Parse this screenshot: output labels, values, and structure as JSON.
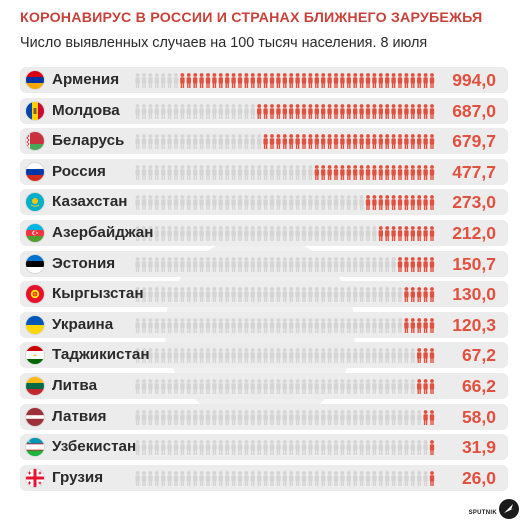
{
  "title": "КОРОНАВИРУС В РОССИИ И СТРАНАХ БЛИЖНЕГО ЗАРУБЕЖЬЯ",
  "subtitle": "Число выявленных случаев на 100 тысяч населения. 8 июля",
  "colors": {
    "accent": "#e2513f",
    "muted": "#d5d5d5",
    "row_bg": "#ececec",
    "title": "#c9423a"
  },
  "logo": {
    "text": "SPUTNIK",
    "icon": "sputnik-logo-icon"
  },
  "chart_data": {
    "type": "bar",
    "categories": [
      "Армения",
      "Молдова",
      "Беларусь",
      "Россия",
      "Казахстан",
      "Азербайджан",
      "Эстония",
      "Кыргызстан",
      "Украина",
      "Таджикистан",
      "Литва",
      "Латвия",
      "Узбекистан",
      "Грузия"
    ],
    "values": [
      994.0,
      687.0,
      679.7,
      477.7,
      273.0,
      212.0,
      150.7,
      130.0,
      120.3,
      67.2,
      66.2,
      58.0,
      31.9,
      26.0
    ],
    "value_labels": [
      "994,0",
      "687,0",
      "679,7",
      "477,7",
      "273,0",
      "212,0",
      "150,7",
      "130,0",
      "120,3",
      "67,2",
      "66,2",
      "58,0",
      "31,9",
      "26,0"
    ],
    "flags": [
      "flag-armenia-icon",
      "flag-moldova-icon",
      "flag-belarus-icon",
      "flag-russia-icon",
      "flag-kazakhstan-icon",
      "flag-azerbaijan-icon",
      "flag-estonia-icon",
      "flag-kyrgyzstan-icon",
      "flag-ukraine-icon",
      "flag-tajikistan-icon",
      "flag-lithuania-icon",
      "flag-latvia-icon",
      "flag-uzbekistan-icon",
      "flag-georgia-icon"
    ],
    "xlim": [
      0,
      994
    ],
    "title": "КОРОНАВИРУС В РОССИИ И СТРАНАХ БЛИЖНЕГО ЗАРУБЕЖЬЯ",
    "xlabel": "",
    "ylabel": ""
  }
}
